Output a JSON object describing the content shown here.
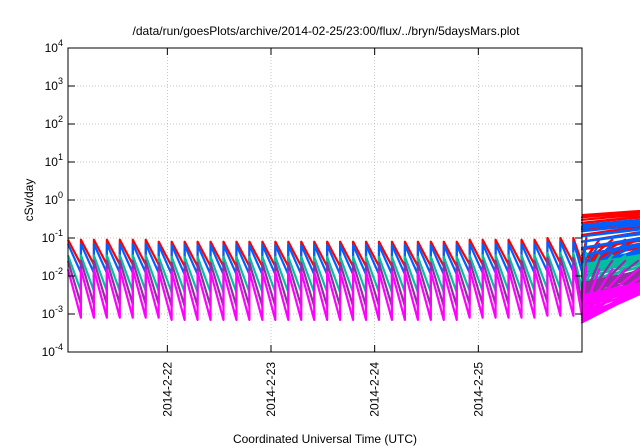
{
  "chart_data": {
    "type": "line",
    "title": "/data/run/goesPlots/archive/2014-02-25/23:00/flux/../bryn/5daysMars.plot",
    "xlabel": "Coordinated Universal Time (UTC)",
    "ylabel": "cSv/day",
    "yscale": "log",
    "ylim": [
      0.0001,
      10000
    ],
    "y_ticks": [
      {
        "base": "10",
        "exp": "-4",
        "value": 0.0001
      },
      {
        "base": "10",
        "exp": "-3",
        "value": 0.001
      },
      {
        "base": "10",
        "exp": "-2",
        "value": 0.01
      },
      {
        "base": "10",
        "exp": "-1",
        "value": 0.1
      },
      {
        "base": "10",
        "exp": "0",
        "value": 1
      },
      {
        "base": "10",
        "exp": "1",
        "value": 10
      },
      {
        "base": "10",
        "exp": "2",
        "value": 100
      },
      {
        "base": "10",
        "exp": "3",
        "value": 1000
      },
      {
        "base": "10",
        "exp": "4",
        "value": 10000
      }
    ],
    "xlim": [
      "2014-02-21T01:00",
      "2014-02-26T00:00"
    ],
    "x_ticks": [
      {
        "label": "2014-2-22",
        "value": "2014-02-22T00:00"
      },
      {
        "label": "2014-2-23",
        "value": "2014-02-23T00:00"
      },
      {
        "label": "2014-2-24",
        "value": "2014-02-24T00:00"
      },
      {
        "label": "2014-2-25",
        "value": "2014-02-25T00:00"
      }
    ],
    "grid": true,
    "legend": "none",
    "sawtooth_period_hours": 3,
    "series": [
      {
        "color": "#ff0000",
        "peaks": [
          0.09,
          0.09,
          0.09,
          0.09,
          0.09,
          0.09,
          0.09,
          0.08,
          0.08,
          0.08,
          0.08,
          0.08,
          0.08,
          0.08,
          0.08,
          0.08,
          0.08,
          0.08,
          0.08,
          0.08,
          0.08,
          0.08,
          0.08,
          0.08,
          0.08,
          0.08,
          0.08,
          0.08,
          0.08,
          0.08,
          0.08,
          0.09,
          0.09,
          0.09,
          0.09,
          0.09,
          0.09,
          0.1,
          0.1,
          0.1,
          0.1,
          0.09,
          0.09,
          0.09,
          0.09,
          0.09,
          0.06,
          0.07,
          0.09,
          0.15,
          0.25,
          0.35,
          0.5,
          0.65,
          0.85,
          0.95,
          1.0
        ],
        "troughs": [
          0.02,
          0.02,
          0.02,
          0.02,
          0.02,
          0.02,
          0.02,
          0.018,
          0.018,
          0.018,
          0.018,
          0.018,
          0.018,
          0.018,
          0.018,
          0.018,
          0.018,
          0.018,
          0.018,
          0.018,
          0.018,
          0.018,
          0.018,
          0.018,
          0.018,
          0.018,
          0.018,
          0.018,
          0.018,
          0.018,
          0.02,
          0.02,
          0.02,
          0.02,
          0.02,
          0.02,
          0.022,
          0.022,
          0.022,
          0.022,
          0.022,
          0.02,
          0.02,
          0.02,
          0.02,
          0.018,
          0.015,
          0.02,
          0.03,
          0.05,
          0.08,
          0.12,
          0.17,
          0.25,
          0.3,
          0.35,
          0.4
        ]
      },
      {
        "color": "#0060ff",
        "peaks": [
          0.07,
          0.07,
          0.07,
          0.07,
          0.07,
          0.07,
          0.07,
          0.065,
          0.065,
          0.065,
          0.065,
          0.065,
          0.065,
          0.065,
          0.065,
          0.065,
          0.065,
          0.065,
          0.065,
          0.065,
          0.065,
          0.065,
          0.065,
          0.065,
          0.065,
          0.065,
          0.065,
          0.065,
          0.065,
          0.065,
          0.065,
          0.07,
          0.07,
          0.07,
          0.07,
          0.07,
          0.07,
          0.08,
          0.08,
          0.08,
          0.08,
          0.07,
          0.07,
          0.07,
          0.07,
          0.07,
          0.045,
          0.055,
          0.07,
          0.11,
          0.18,
          0.25,
          0.35,
          0.45,
          0.55,
          0.65,
          0.7
        ],
        "troughs": [
          0.012,
          0.012,
          0.012,
          0.012,
          0.012,
          0.012,
          0.012,
          0.011,
          0.011,
          0.011,
          0.011,
          0.011,
          0.011,
          0.011,
          0.011,
          0.011,
          0.011,
          0.011,
          0.011,
          0.011,
          0.011,
          0.011,
          0.011,
          0.011,
          0.011,
          0.011,
          0.011,
          0.011,
          0.011,
          0.011,
          0.012,
          0.012,
          0.012,
          0.012,
          0.012,
          0.012,
          0.013,
          0.013,
          0.013,
          0.013,
          0.013,
          0.012,
          0.012,
          0.012,
          0.012,
          0.011,
          0.01,
          0.012,
          0.02,
          0.035,
          0.055,
          0.08,
          0.11,
          0.15,
          0.18,
          0.2,
          0.22
        ]
      },
      {
        "color": "#00c0a0",
        "peaks": [
          0.035,
          0.035,
          0.035,
          0.035,
          0.035,
          0.035,
          0.035,
          0.032,
          0.032,
          0.032,
          0.032,
          0.032,
          0.032,
          0.032,
          0.032,
          0.032,
          0.032,
          0.032,
          0.032,
          0.032,
          0.032,
          0.032,
          0.032,
          0.032,
          0.032,
          0.032,
          0.032,
          0.032,
          0.032,
          0.032,
          0.032,
          0.035,
          0.035,
          0.035,
          0.035,
          0.035,
          0.035,
          0.04,
          0.04,
          0.04,
          0.04,
          0.035,
          0.035,
          0.035,
          0.035,
          0.035,
          0.025,
          0.028,
          0.032,
          0.045,
          0.06,
          0.08,
          0.1,
          0.12,
          0.14,
          0.15,
          0.16
        ],
        "troughs": [
          0.004,
          0.004,
          0.004,
          0.004,
          0.004,
          0.004,
          0.004,
          0.0037,
          0.0037,
          0.0037,
          0.0037,
          0.0037,
          0.0037,
          0.0037,
          0.0037,
          0.0037,
          0.0037,
          0.0037,
          0.0037,
          0.0037,
          0.0037,
          0.0037,
          0.0037,
          0.0037,
          0.0037,
          0.0037,
          0.0037,
          0.0037,
          0.0037,
          0.0037,
          0.004,
          0.004,
          0.004,
          0.004,
          0.004,
          0.004,
          0.0045,
          0.0045,
          0.0045,
          0.0045,
          0.0045,
          0.004,
          0.004,
          0.004,
          0.004,
          0.0037,
          0.003,
          0.0035,
          0.005,
          0.007,
          0.009,
          0.011,
          0.013,
          0.015,
          0.017,
          0.018,
          0.02
        ]
      },
      {
        "color": "#9030a0",
        "peaks": [
          0.025,
          0.025,
          0.025,
          0.025,
          0.025,
          0.025,
          0.025,
          0.022,
          0.022,
          0.022,
          0.022,
          0.022,
          0.022,
          0.022,
          0.022,
          0.022,
          0.022,
          0.022,
          0.022,
          0.022,
          0.022,
          0.022,
          0.022,
          0.022,
          0.022,
          0.022,
          0.022,
          0.022,
          0.022,
          0.022,
          0.022,
          0.025,
          0.025,
          0.025,
          0.025,
          0.025,
          0.025,
          0.03,
          0.03,
          0.03,
          0.03,
          0.025,
          0.025,
          0.025,
          0.025,
          0.025,
          0.018,
          0.02,
          0.022,
          0.03,
          0.04,
          0.05,
          0.06,
          0.07,
          0.08,
          0.085,
          0.09
        ],
        "troughs": [
          0.0018,
          0.0018,
          0.0018,
          0.0018,
          0.0018,
          0.0018,
          0.0018,
          0.0016,
          0.0016,
          0.0016,
          0.0016,
          0.0016,
          0.0016,
          0.0016,
          0.0016,
          0.0016,
          0.0016,
          0.0016,
          0.0016,
          0.0016,
          0.0016,
          0.0016,
          0.0016,
          0.0016,
          0.0016,
          0.0016,
          0.0016,
          0.0016,
          0.0016,
          0.0016,
          0.0018,
          0.0018,
          0.0018,
          0.0018,
          0.0018,
          0.0018,
          0.002,
          0.002,
          0.002,
          0.002,
          0.002,
          0.0018,
          0.0018,
          0.0018,
          0.0018,
          0.0016,
          0.0013,
          0.0015,
          0.002,
          0.0028,
          0.0035,
          0.004,
          0.0045,
          0.005,
          0.0055,
          0.006,
          0.0065
        ]
      },
      {
        "color": "#ff00ff",
        "peaks": [
          0.015,
          0.015,
          0.015,
          0.015,
          0.015,
          0.015,
          0.015,
          0.013,
          0.013,
          0.013,
          0.013,
          0.013,
          0.013,
          0.013,
          0.013,
          0.013,
          0.013,
          0.013,
          0.013,
          0.013,
          0.013,
          0.013,
          0.013,
          0.013,
          0.013,
          0.013,
          0.013,
          0.013,
          0.013,
          0.013,
          0.013,
          0.015,
          0.015,
          0.015,
          0.015,
          0.015,
          0.015,
          0.018,
          0.018,
          0.018,
          0.018,
          0.015,
          0.015,
          0.015,
          0.015,
          0.015,
          0.011,
          0.012,
          0.013,
          0.016,
          0.02,
          0.025,
          0.03,
          0.035,
          0.04,
          0.045,
          0.05
        ],
        "troughs": [
          0.0008,
          0.0008,
          0.0008,
          0.0008,
          0.0008,
          0.0008,
          0.0008,
          0.0007,
          0.0007,
          0.0007,
          0.0007,
          0.0007,
          0.0007,
          0.0007,
          0.0007,
          0.0007,
          0.0007,
          0.0007,
          0.0007,
          0.0007,
          0.0007,
          0.0007,
          0.0007,
          0.0007,
          0.0007,
          0.0007,
          0.0007,
          0.0007,
          0.0007,
          0.0007,
          0.0008,
          0.0008,
          0.0008,
          0.0008,
          0.0008,
          0.0008,
          0.0009,
          0.0009,
          0.0009,
          0.0009,
          0.0009,
          0.0008,
          0.0008,
          0.0008,
          0.0008,
          0.0007,
          0.0006,
          0.0007,
          0.0009,
          0.0012,
          0.0015,
          0.0018,
          0.002,
          0.0022,
          0.0025,
          0.0027,
          0.003
        ]
      }
    ]
  }
}
